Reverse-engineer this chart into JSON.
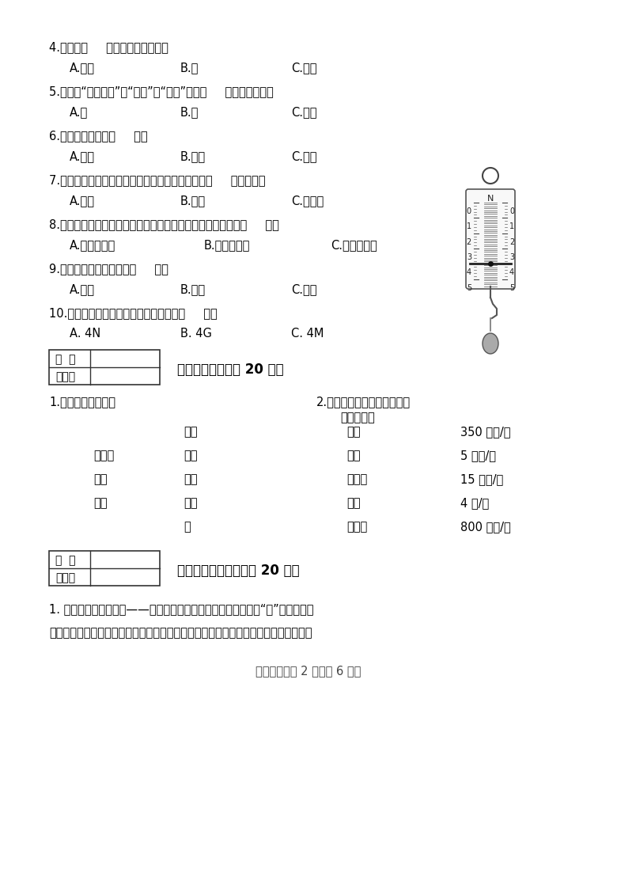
{
  "bg_color": "#ffffff",
  "text_color": "#000000",
  "q4": "4.胎生是（     ）动物的繁殖方式。",
  "q4_opts": [
    "A.哺乳",
    "B.鱼",
    "C.鸟类"
  ],
  "q5": "5.俗话说“水涨船高”，“水涨”、“船高”是以（     ）为参照物的。",
  "q5_opts": [
    "A.水",
    "B.船",
    "C.地面"
  ],
  "q6": "6.琴弦的运动叫做（     ）。",
  "q6_opts": [
    "A.摇动",
    "B.振动",
    "C.滚动"
  ],
  "q7": "7.运动中的自行车能立刻刹住车停下来，这是由于（     ）的作用。",
  "q7_opts": [
    "A.弹力",
    "B.拉力",
    "C.摩擦力"
  ],
  "q8": "8.探究小车拉力大小与小车前进快慢的关系时，需要改变的是（     ）。",
  "q8_opts": [
    "A.鑰码的数量",
    "B.小车的载重",
    "C.行进的路程"
  ],
  "q9": "9.鸟的足和趾细长，适合（     ）。",
  "q9_opts": [
    "A.爬树",
    "B.沉水",
    "C.抓虫"
  ],
  "q10": "10.右图中用测力计提起重物所用的力是（     ）。",
  "q10_opts": [
    "A. 4N",
    "B. 4G",
    "C. 4M"
  ],
  "s3_title": "三、连线题：（八 20 分）",
  "s3_sub1": "1.按动物类别连线：",
  "s3_sub2a": "2.把下列物体的运动与相应的",
  "s3_sub2b": "速度连线：",
  "animals_left": [
    "哺乳类",
    "鸟类",
    "鱼类"
  ],
  "animals_mid": [
    "鲸鱼",
    "马鸟",
    "锦鲤",
    "蝙蝠",
    "人"
  ],
  "motion": [
    "蜗牛",
    "飞机",
    "人步行",
    "动车",
    "自行车"
  ],
  "speed": [
    "350 千米/时",
    "5 千米/时",
    "15 千米/时",
    "4 米/时",
    "800 千米/时"
  ],
  "s4_title": "四、阅读分析题：（八 20 分）",
  "s4_t1": "1. 下图是一种游戏工具——弹弓。它一般用树木的枝抒制作，呈“丫”字形，两头",
  "s4_t2": "系上皮筋，皮筋中段系上一包裹弹丸的皮块。游戏时请千万不要对着动物或人射击哦！",
  "footer": "四年级科学第 2 页（八 6 页）"
}
